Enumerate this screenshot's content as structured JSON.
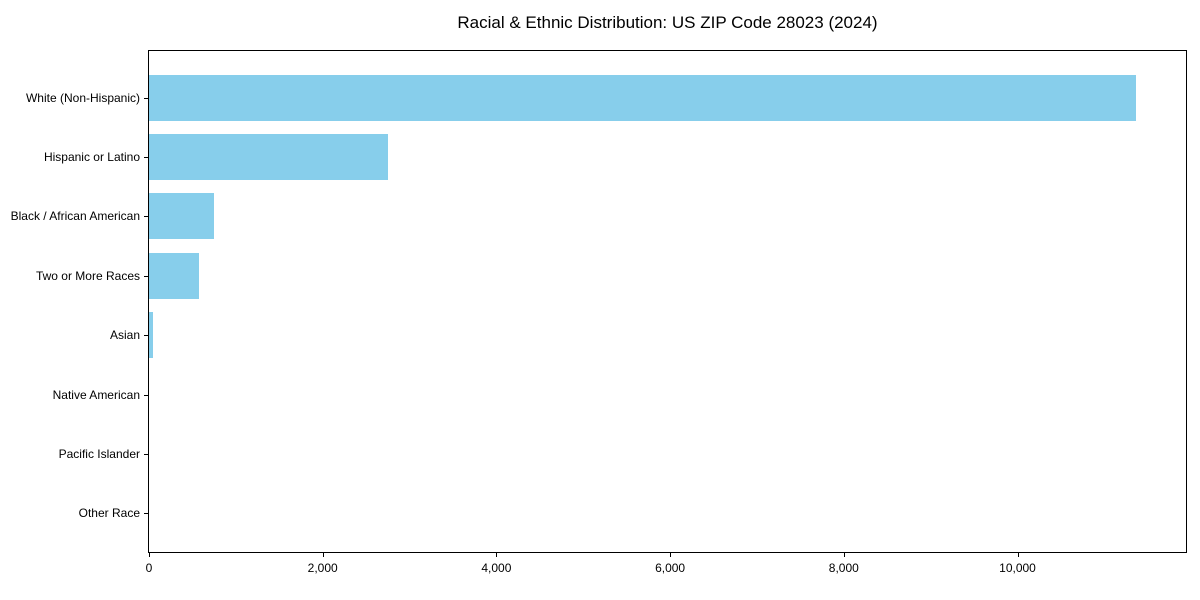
{
  "chart_data": {
    "type": "bar",
    "orientation": "horizontal",
    "title": "Racial & Ethnic Distribution: US ZIP Code 28023 (2024)",
    "categories": [
      "White (Non-Hispanic)",
      "Hispanic or Latino",
      "Black / African American",
      "Two or More Races",
      "Asian",
      "Native American",
      "Pacific Islander",
      "Other Race"
    ],
    "values": [
      11370,
      2750,
      750,
      570,
      45,
      0,
      0,
      0
    ],
    "xlabel": "",
    "ylabel": "",
    "xlim": [
      0,
      11940
    ],
    "x_ticks": [
      0,
      2000,
      4000,
      6000,
      8000,
      10000
    ],
    "x_tick_labels": [
      "0",
      "2,000",
      "4,000",
      "6,000",
      "8,000",
      "10,000"
    ],
    "bar_color": "#87CEEB",
    "spine_color": "#000000",
    "background_color": "#ffffff",
    "grid": false,
    "legend": null
  }
}
